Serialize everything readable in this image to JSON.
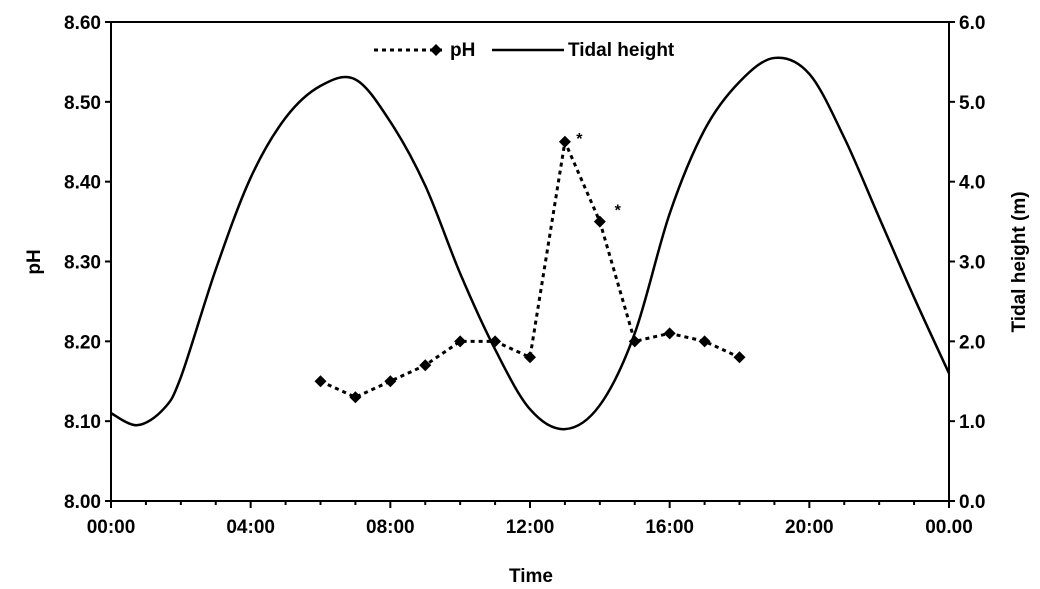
{
  "chart_data": {
    "type": "line",
    "title": "",
    "xlabel": "Time",
    "ylabel_left": "pH",
    "ylabel_right": "Tidal height (m)",
    "xlim": [
      0,
      24
    ],
    "x_ticks": [
      0,
      4,
      8,
      12,
      16,
      20,
      24
    ],
    "x_tick_labels": [
      "00:00",
      "04:00",
      "08:00",
      "12:00",
      "16:00",
      "20:00",
      "00.00"
    ],
    "ylim_left": [
      8.0,
      8.6
    ],
    "y_left_ticks": [
      8.0,
      8.1,
      8.2,
      8.3,
      8.4,
      8.5,
      8.6
    ],
    "y_left_tick_labels": [
      "8.00",
      "8.10",
      "8.20",
      "8.30",
      "8.40",
      "8.50",
      "8.60"
    ],
    "ylim_right": [
      0.0,
      6.0
    ],
    "y_right_ticks": [
      0,
      1,
      2,
      3,
      4,
      5,
      6
    ],
    "y_right_tick_labels": [
      "0.0",
      "1.0",
      "2.0",
      "3.0",
      "4.0",
      "5.0",
      "6.0"
    ],
    "grid": false,
    "legend_position": "top-center",
    "series": [
      {
        "name": "pH",
        "axis": "left",
        "style": "dotted-with-diamond-markers",
        "color": "#000000",
        "x": [
          6,
          7,
          8,
          9,
          10,
          11,
          12,
          13,
          14,
          15,
          16,
          17,
          18
        ],
        "y": [
          8.15,
          8.13,
          8.15,
          8.17,
          8.2,
          8.2,
          8.18,
          8.45,
          8.35,
          8.2,
          8.21,
          8.2,
          8.18
        ]
      },
      {
        "name": "Tidal height",
        "axis": "right",
        "style": "solid",
        "color": "#000000",
        "x": [
          0,
          0.75,
          1.5,
          2,
          3,
          4,
          5,
          6,
          7,
          8,
          9,
          10,
          11,
          12,
          13,
          14,
          15,
          16,
          17,
          18,
          19,
          20,
          21,
          22,
          23,
          24
        ],
        "y": [
          1.1,
          0.95,
          1.15,
          1.55,
          2.9,
          4.05,
          4.8,
          5.2,
          5.28,
          4.75,
          3.95,
          2.85,
          1.9,
          1.15,
          0.9,
          1.2,
          2.1,
          3.6,
          4.65,
          5.25,
          5.55,
          5.35,
          4.55,
          3.55,
          2.55,
          1.6
        ]
      }
    ],
    "annotations": [
      {
        "text": "*",
        "x": 13.3,
        "y": 8.45,
        "axis": "left"
      },
      {
        "text": "*",
        "x": 14.4,
        "y": 8.36,
        "axis": "left"
      }
    ]
  }
}
